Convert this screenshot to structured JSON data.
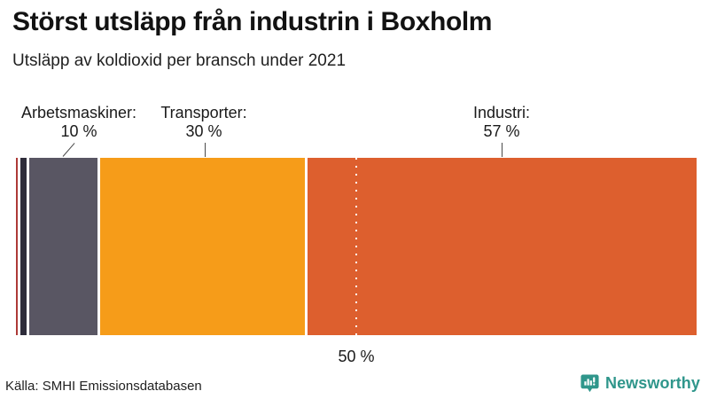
{
  "header": {
    "title": "Störst utsläpp från industrin i Boxholm",
    "subtitle": "Utsläpp av koldioxid per bransch under 2021"
  },
  "labels": [
    {
      "title": "Arbetsmaskiner:",
      "value": "10 %"
    },
    {
      "title": "Transporter:",
      "value": "30 %"
    },
    {
      "title": "Industri:",
      "value": "57 %"
    }
  ],
  "chart_data": {
    "type": "bar",
    "variant": "stacked-horizontal-single-bar",
    "title": "Störst utsläpp från industrin i Boxholm",
    "subtitle": "Utsläpp av koldioxid per bransch under 2021",
    "unit": "%",
    "xlim": [
      0,
      100
    ],
    "segments": [
      {
        "label": "",
        "value": 0.3,
        "color": "#AD3A37",
        "labeled": false
      },
      {
        "label": "",
        "value": 0.9,
        "color": "#2E2C3A",
        "labeled": false
      },
      {
        "label": "Arbetsmaskiner",
        "value": 10,
        "color": "#595663",
        "labeled": true
      },
      {
        "label": "Transporter",
        "value": 30,
        "color": "#F69C19",
        "labeled": true
      },
      {
        "label": "Industri",
        "value": 57,
        "color": "#DD5F2E",
        "labeled": true
      }
    ],
    "reference_line": {
      "value": 50,
      "label": "50 %",
      "style": "dotted",
      "color": "#ffffff"
    },
    "legend": "none",
    "grid": "off"
  },
  "colors": {
    "industri": "#DD5F2E",
    "transporter": "#F69C19",
    "arbetsmaskiner": "#595663",
    "minor_navy": "#2E2C3A",
    "minor_red": "#AD3A37",
    "brand_teal": "#2F968B"
  },
  "footer": {
    "source": "Källa: SMHI Emissionsdatabasen",
    "brand": "Newsworthy"
  }
}
